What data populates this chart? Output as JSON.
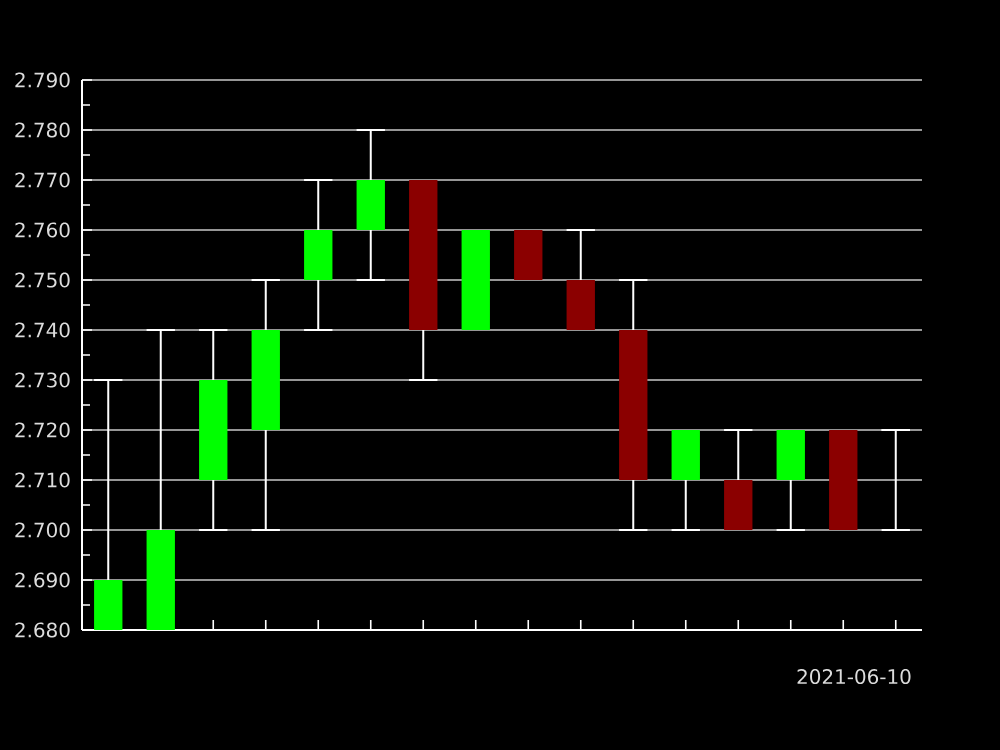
{
  "chart_data": {
    "type": "candlestick",
    "xlabel": "2021-06-10",
    "categories": [
      null,
      null,
      null,
      null,
      null,
      null,
      null,
      null,
      null,
      null,
      null,
      null,
      null,
      null,
      null,
      null
    ],
    "ohlc": [
      [
        2.68,
        2.73,
        2.68,
        2.69
      ],
      [
        2.68,
        2.74,
        2.68,
        2.7
      ],
      [
        2.71,
        2.74,
        2.7,
        2.73
      ],
      [
        2.72,
        2.75,
        2.7,
        2.74
      ],
      [
        2.75,
        2.77,
        2.74,
        2.76
      ],
      [
        2.76,
        2.78,
        2.75,
        2.77
      ],
      [
        2.77,
        2.77,
        2.73,
        2.74
      ],
      [
        2.74,
        2.76,
        2.74,
        2.76
      ],
      [
        2.76,
        2.76,
        2.75,
        2.75
      ],
      [
        2.75,
        2.76,
        2.74,
        2.74
      ],
      [
        2.74,
        2.75,
        2.7,
        2.71
      ],
      [
        2.71,
        2.72,
        2.7,
        2.72
      ],
      [
        2.71,
        2.72,
        2.7,
        2.7
      ],
      [
        2.71,
        2.72,
        2.7,
        2.72
      ],
      [
        2.72,
        2.72,
        2.7,
        2.7
      ],
      [
        2.72,
        2.72,
        2.7,
        2.72
      ]
    ],
    "colors": [
      "#00ff00",
      "#00ff00",
      "#00ff00",
      "#00ff00",
      "#00ff00",
      "#00ff00",
      "#8b0000",
      "#00ff00",
      "#8b0000",
      "#8b0000",
      "#8b0000",
      "#00ff00",
      "#8b0000",
      "#00ff00",
      "#8b0000",
      "#ffffff"
    ],
    "ylim": [
      2.68,
      2.79
    ],
    "yticks": [
      {
        "value": 2.68,
        "label": "2.680"
      },
      {
        "value": 2.69,
        "label": "2.690"
      },
      {
        "value": 2.7,
        "label": "2.700"
      },
      {
        "value": 2.71,
        "label": "2.710"
      },
      {
        "value": 2.72,
        "label": "2.720"
      },
      {
        "value": 2.73,
        "label": "2.730"
      },
      {
        "value": 2.74,
        "label": "2.740"
      },
      {
        "value": 2.75,
        "label": "2.750"
      },
      {
        "value": 2.76,
        "label": "2.760"
      },
      {
        "value": 2.77,
        "label": "2.770"
      },
      {
        "value": 2.78,
        "label": "2.780"
      },
      {
        "value": 2.79,
        "label": "2.790"
      }
    ],
    "grid": "y"
  }
}
